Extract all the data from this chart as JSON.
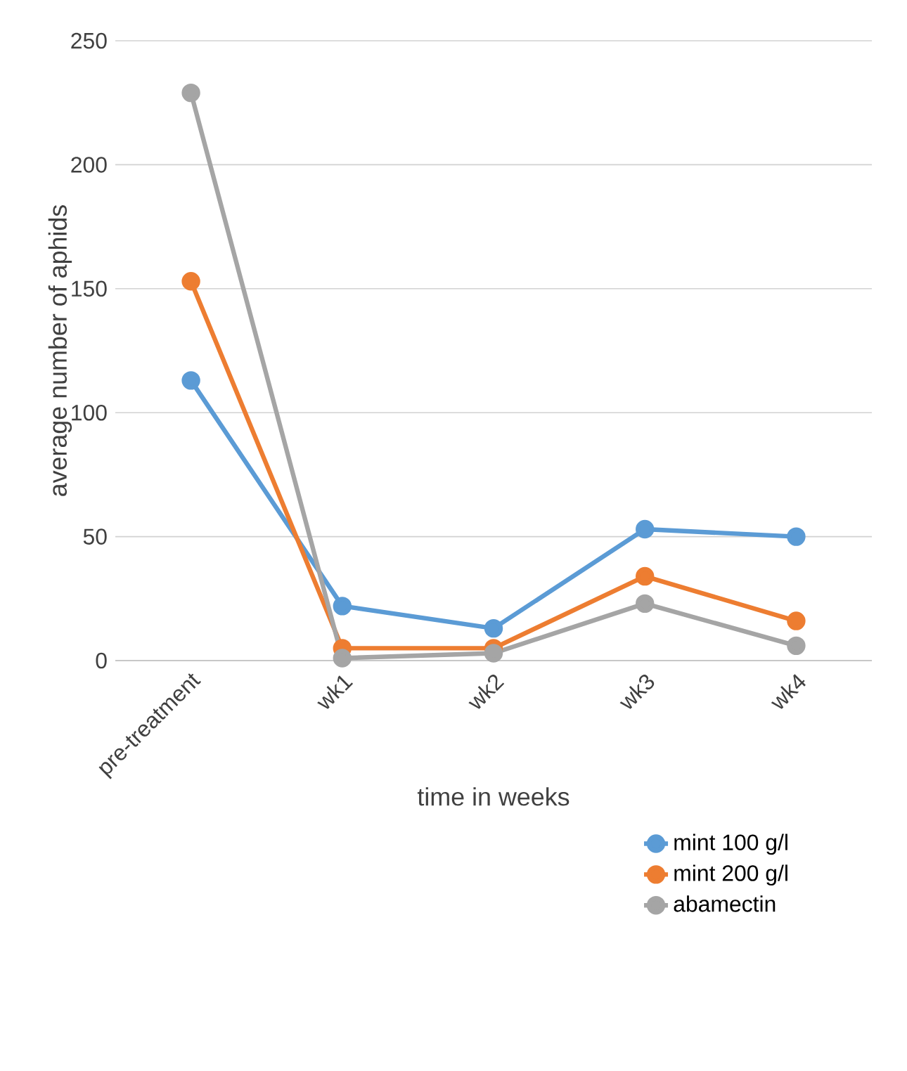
{
  "chart_data": {
    "type": "line",
    "xlabel": "time in weeks",
    "ylabel": "average number of aphids",
    "categories": [
      "pre-treatment",
      "wk1",
      "wk2",
      "wk3",
      "wk4"
    ],
    "series": [
      {
        "name": "mint 100 g/l",
        "color": "#5b9bd5",
        "values": [
          113,
          22,
          13,
          53,
          50
        ]
      },
      {
        "name": "mint 200 g/l",
        "color": "#ed7d31",
        "values": [
          153,
          5,
          5,
          34,
          16
        ]
      },
      {
        "name": "abamectin",
        "color": "#a5a5a5",
        "values": [
          229,
          1,
          3,
          23,
          6
        ]
      }
    ],
    "ylim": [
      0,
      250
    ],
    "yticks": [
      0,
      50,
      100,
      150,
      200,
      250
    ],
    "grid": "y",
    "legend": "bottom right",
    "marker": "circle",
    "line_style": "solid"
  }
}
